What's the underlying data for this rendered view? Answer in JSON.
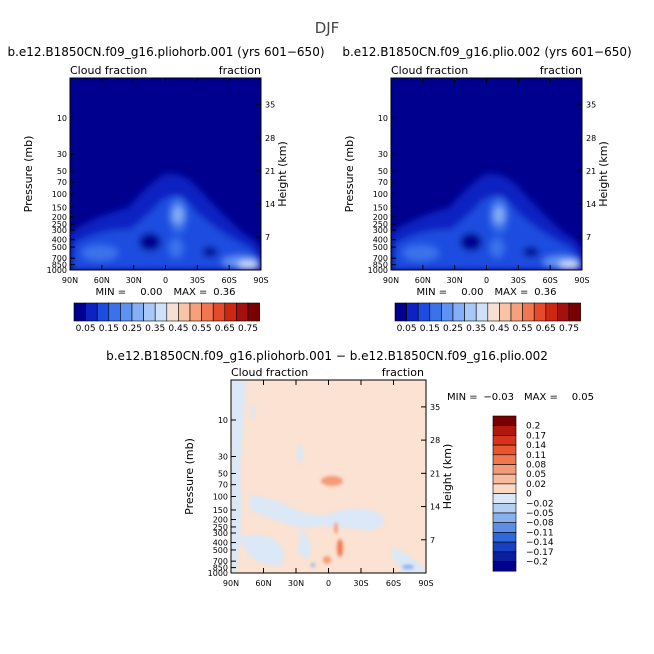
{
  "figure_title": "DJF",
  "colorbar_levels_top": [
    "0.05",
    "0.15",
    "0.25",
    "0.35",
    "0.45",
    "0.55",
    "0.65",
    "0.75"
  ],
  "colorbar_colors_top": [
    "#00008f",
    "#0c22c2",
    "#1d4de0",
    "#3a72ec",
    "#5e92f3",
    "#86b0f6",
    "#a9c8f8",
    "#cfe1f9",
    "#f7e0d3",
    "#f9c3a8",
    "#f7a07c",
    "#f27751",
    "#e64a2c",
    "#cc2712",
    "#a50f0d",
    "#7a0000"
  ],
  "colorbar_levels_diff": [
    "0.2",
    "0.17",
    "0.14",
    "0.11",
    "0.08",
    "0.05",
    "0.02",
    "0",
    "−0.02",
    "−0.05",
    "−0.08",
    "−0.11",
    "−0.14",
    "−0.17",
    "−0.2"
  ],
  "colorbar_colors_diff": [
    "#7a0000",
    "#b0170d",
    "#d6321c",
    "#e9552f",
    "#f1774f",
    "#f59a76",
    "#f8bb9d",
    "#fbd9c4",
    "#dbe8f7",
    "#b5cff3",
    "#8ab1ef",
    "#5c8ee8",
    "#2f68dc",
    "#1740c2",
    "#0a1f9e",
    "#00008f"
  ],
  "chart_data": [
    {
      "type": "contour",
      "title": "b.e12.B1850CN.f09_g16.pliohorb.001 (yrs 601−650)",
      "left_string": "Cloud fraction",
      "right_string": "fraction",
      "xlabel": "",
      "ylabel": "Pressure (mb)",
      "ylabel_right": "Height (km)",
      "x_ticks": [
        "90N",
        "60N",
        "30N",
        "0",
        "30S",
        "60S",
        "90S"
      ],
      "y_ticks": [
        "10",
        "30",
        "50",
        "70",
        "100",
        "150",
        "200",
        "250",
        "300",
        "400",
        "500",
        "700",
        "850",
        "1000"
      ],
      "y_ticks_right": [
        "35",
        "28",
        "21",
        "14",
        "7"
      ],
      "min_label": "MIN =",
      "min_value": "0.00",
      "max_label": "MAX =",
      "max_value": "0.36",
      "ylim": [
        1000,
        3
      ],
      "y_scale": "log",
      "colorbar_position": "bottom"
    },
    {
      "type": "contour",
      "title": "b.e12.B1850CN.f09_g16.plio.002 (yrs 601−650)",
      "left_string": "Cloud fraction",
      "right_string": "fraction",
      "xlabel": "",
      "ylabel": "Pressure (mb)",
      "ylabel_right": "Height (km)",
      "x_ticks": [
        "90N",
        "60N",
        "30N",
        "0",
        "30S",
        "60S",
        "90S"
      ],
      "y_ticks": [
        "10",
        "30",
        "50",
        "70",
        "100",
        "150",
        "200",
        "250",
        "300",
        "400",
        "500",
        "700",
        "850",
        "1000"
      ],
      "y_ticks_right": [
        "35",
        "28",
        "21",
        "14",
        "7"
      ],
      "min_label": "MIN =",
      "min_value": "0.00",
      "max_label": "MAX =",
      "max_value": "0.36",
      "ylim": [
        1000,
        3
      ],
      "y_scale": "log",
      "colorbar_position": "bottom"
    },
    {
      "type": "contour",
      "title": "b.e12.B1850CN.f09_g16.pliohorb.001 − b.e12.B1850CN.f09_g16.plio.002",
      "left_string": "Cloud fraction",
      "right_string": "fraction",
      "xlabel": "",
      "ylabel": "Pressure (mb)",
      "ylabel_right": "Height (km)",
      "x_ticks": [
        "90N",
        "60N",
        "30N",
        "0",
        "30S",
        "60S",
        "90S"
      ],
      "y_ticks": [
        "10",
        "30",
        "50",
        "70",
        "100",
        "150",
        "200",
        "250",
        "300",
        "400",
        "500",
        "700",
        "850",
        "1000"
      ],
      "y_ticks_right": [
        "35",
        "28",
        "21",
        "14",
        "7"
      ],
      "min_label": "MIN =",
      "min_value": "−0.03",
      "max_label": "MAX =",
      "max_value": "0.05",
      "ylim": [
        1000,
        3
      ],
      "y_scale": "log",
      "colorbar_position": "right"
    }
  ]
}
